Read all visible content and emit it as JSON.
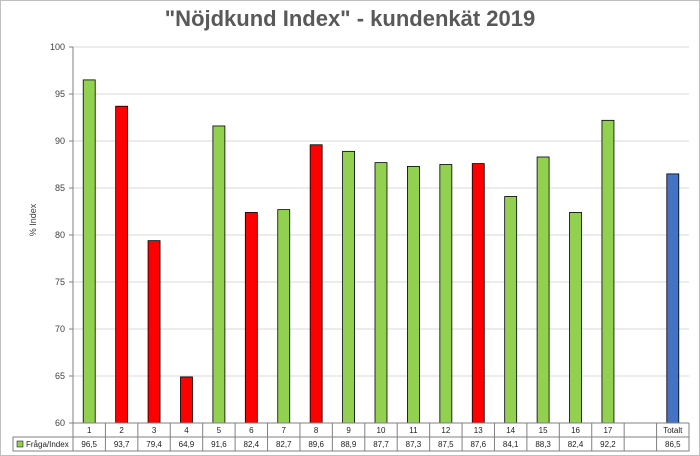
{
  "chart_data": {
    "type": "bar",
    "title": "\"Nöjdkund Index\" - kundenkät 2019",
    "ylabel": "% Index",
    "ylim": [
      60,
      100
    ],
    "yticks": [
      60,
      65,
      70,
      75,
      80,
      85,
      90,
      95,
      100
    ],
    "categories": [
      "1",
      "2",
      "3",
      "4",
      "5",
      "6",
      "7",
      "8",
      "9",
      "10",
      "11",
      "12",
      "13",
      "14",
      "15",
      "16",
      "17",
      "",
      "Totalt"
    ],
    "series": [
      {
        "name": "Fråga/Index",
        "values": [
          96.5,
          93.7,
          79.4,
          64.9,
          91.6,
          82.4,
          82.7,
          89.6,
          88.9,
          87.7,
          87.3,
          87.5,
          87.6,
          84.1,
          88.3,
          82.4,
          92.2,
          null,
          86.5
        ],
        "value_labels": [
          "96,5",
          "93,7",
          "79,4",
          "64,9",
          "91,6",
          "82,4",
          "82,7",
          "89,6",
          "88,9",
          "87,7",
          "87,3",
          "87,5",
          "87,6",
          "84,1",
          "88,3",
          "82,4",
          "92,2",
          "",
          "86,5"
        ],
        "bar_colors": [
          "green",
          "red",
          "red",
          "red",
          "green",
          "red",
          "green",
          "red",
          "green",
          "green",
          "green",
          "green",
          "red",
          "green",
          "green",
          "green",
          "green",
          "",
          "blue"
        ]
      }
    ],
    "colors": {
      "green": "#92d050",
      "red": "#ff0000",
      "blue": "#4472c4"
    },
    "legend_color": "#92d050",
    "grid": true,
    "legend": "data-table-left"
  }
}
